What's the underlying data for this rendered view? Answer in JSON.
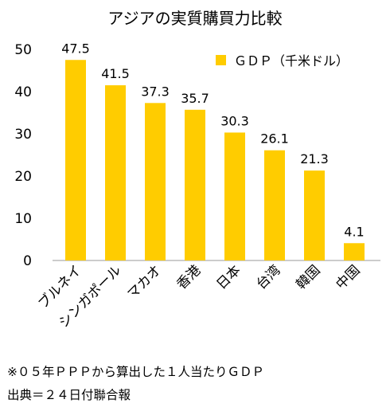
{
  "chart_data": {
    "type": "bar",
    "title": "アジアの実質購買力比較",
    "categories": [
      "ブルネイ",
      "シンガポール",
      "マカオ",
      "香港",
      "日本",
      "台湾",
      "韓国",
      "中国"
    ],
    "series": [
      {
        "name": "ＧＤＰ（千米ドル）",
        "values": [
          47.5,
          41.5,
          37.3,
          35.7,
          30.3,
          26.1,
          21.3,
          4.1
        ]
      }
    ],
    "data_labels": [
      "47.5",
      "41.5",
      "37.3",
      "35.7",
      "30.3",
      "26.1",
      "21.3",
      "4.1"
    ],
    "yticks": [
      "0",
      "10",
      "20",
      "30",
      "40",
      "50"
    ],
    "ylim": [
      0,
      50
    ],
    "xlabel": "",
    "ylabel": "",
    "grid": false,
    "legend_position": "top-right",
    "bar_color": "#FFCC00"
  },
  "notes": {
    "line1": "※０５年ＰＰＰから算出した１人当たりＧＤＰ",
    "line2": "出典＝２４日付聯合報"
  }
}
